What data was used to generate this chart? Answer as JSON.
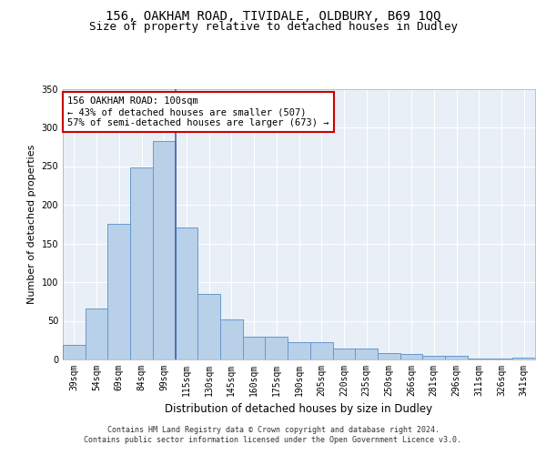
{
  "title": "156, OAKHAM ROAD, TIVIDALE, OLDBURY, B69 1QQ",
  "subtitle": "Size of property relative to detached houses in Dudley",
  "xlabel": "Distribution of detached houses by size in Dudley",
  "ylabel": "Number of detached properties",
  "categories": [
    "39sqm",
    "54sqm",
    "69sqm",
    "84sqm",
    "99sqm",
    "115sqm",
    "130sqm",
    "145sqm",
    "160sqm",
    "175sqm",
    "190sqm",
    "205sqm",
    "220sqm",
    "235sqm",
    "250sqm",
    "266sqm",
    "281sqm",
    "296sqm",
    "311sqm",
    "326sqm",
    "341sqm"
  ],
  "values": [
    19,
    66,
    175,
    248,
    282,
    171,
    85,
    52,
    30,
    30,
    22,
    22,
    14,
    14,
    8,
    7,
    5,
    5,
    1,
    1,
    2
  ],
  "bar_color": "#b8d0e8",
  "bar_edge_color": "#6699cc",
  "vline_color": "#4466aa",
  "annotation_text": "156 OAKHAM ROAD: 100sqm\n← 43% of detached houses are smaller (507)\n57% of semi-detached houses are larger (673) →",
  "annotation_box_color": "#ffffff",
  "annotation_box_edgecolor": "#cc0000",
  "bg_color": "#e8eff7",
  "grid_color": "#ffffff",
  "ylim": [
    0,
    350
  ],
  "yticks": [
    0,
    50,
    100,
    150,
    200,
    250,
    300,
    350
  ],
  "footer": "Contains HM Land Registry data © Crown copyright and database right 2024.\nContains public sector information licensed under the Open Government Licence v3.0.",
  "title_fontsize": 10,
  "subtitle_fontsize": 9,
  "tick_fontsize": 7,
  "ylabel_fontsize": 8,
  "xlabel_fontsize": 8.5,
  "footer_fontsize": 6,
  "annot_fontsize": 7.5
}
